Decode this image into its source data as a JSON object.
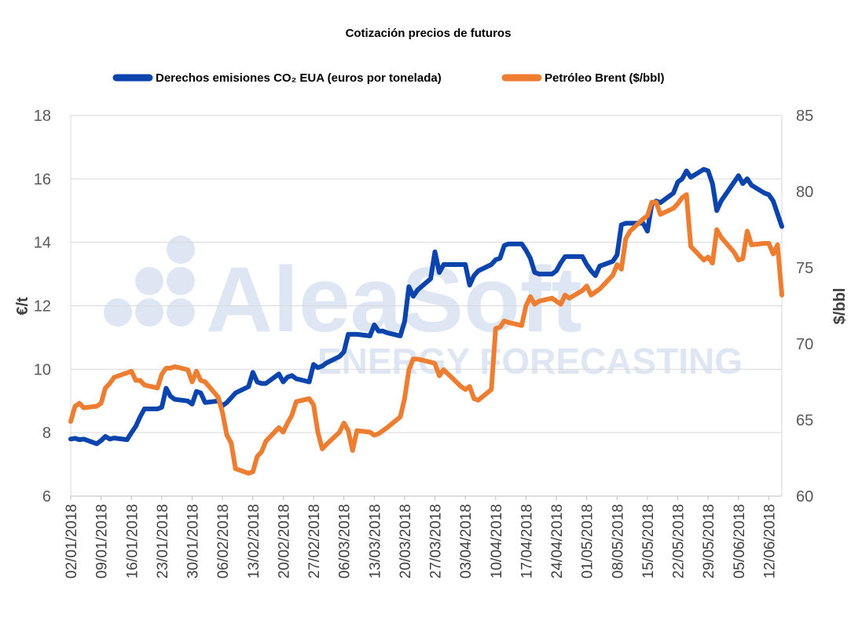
{
  "watermark": {
    "brand": "AleaSoft",
    "tagline": "ENERGY FORECASTING"
  },
  "colors": {
    "eua": "#0b44ad",
    "brent": "#ed7d31",
    "grid": "#d9d9d9",
    "watermark": "#dde6f2"
  },
  "chart_data": {
    "type": "line",
    "title": "Cotización precios de futuros",
    "legend_position": "top",
    "grid": true,
    "y_left": {
      "label": "€/t",
      "range": [
        6,
        18
      ],
      "ticks": [
        6,
        8,
        10,
        12,
        14,
        16,
        18
      ]
    },
    "y_right": {
      "label": "$/bbl",
      "range": [
        60,
        85
      ],
      "ticks": [
        60,
        65,
        70,
        75,
        80,
        85
      ]
    },
    "x_range": [
      "2018-01-02",
      "2018-06-15"
    ],
    "x_tick_labels": [
      "02/01/2018",
      "09/01/2018",
      "16/01/2018",
      "23/01/2018",
      "30/01/2018",
      "06/02/2018",
      "13/02/2018",
      "20/02/2018",
      "27/02/2018",
      "06/03/2018",
      "13/03/2018",
      "20/03/2018",
      "27/03/2018",
      "03/04/2018",
      "10/04/2018",
      "17/04/2018",
      "24/04/2018",
      "01/05/2018",
      "08/05/2018",
      "15/05/2018",
      "22/05/2018",
      "29/05/2018",
      "05/06/2018",
      "12/06/2018"
    ],
    "series": [
      {
        "name": "Derechos emisiones CO2 EUA (euros por tonelada)",
        "legend_label": "Derechos emisiones CO₂ EUA (euros por tonelada)",
        "axis": "left",
        "x": [
          "2018-01-02",
          "2018-01-03",
          "2018-01-04",
          "2018-01-05",
          "2018-01-08",
          "2018-01-09",
          "2018-01-10",
          "2018-01-11",
          "2018-01-12",
          "2018-01-15",
          "2018-01-16",
          "2018-01-17",
          "2018-01-18",
          "2018-01-19",
          "2018-01-22",
          "2018-01-23",
          "2018-01-24",
          "2018-01-25",
          "2018-01-26",
          "2018-01-29",
          "2018-01-30",
          "2018-01-31",
          "2018-02-01",
          "2018-02-02",
          "2018-02-05",
          "2018-02-06",
          "2018-02-07",
          "2018-02-08",
          "2018-02-09",
          "2018-02-12",
          "2018-02-13",
          "2018-02-14",
          "2018-02-15",
          "2018-02-16",
          "2018-02-19",
          "2018-02-20",
          "2018-02-21",
          "2018-02-22",
          "2018-02-23",
          "2018-02-26",
          "2018-02-27",
          "2018-02-28",
          "2018-03-01",
          "2018-03-02",
          "2018-03-05",
          "2018-03-06",
          "2018-03-07",
          "2018-03-08",
          "2018-03-09",
          "2018-03-12",
          "2018-03-13",
          "2018-03-14",
          "2018-03-15",
          "2018-03-16",
          "2018-03-19",
          "2018-03-20",
          "2018-03-21",
          "2018-03-22",
          "2018-03-23",
          "2018-03-26",
          "2018-03-27",
          "2018-03-28",
          "2018-03-29",
          "2018-04-02",
          "2018-04-03",
          "2018-04-04",
          "2018-04-05",
          "2018-04-06",
          "2018-04-09",
          "2018-04-10",
          "2018-04-11",
          "2018-04-12",
          "2018-04-13",
          "2018-04-16",
          "2018-04-17",
          "2018-04-18",
          "2018-04-19",
          "2018-04-20",
          "2018-04-23",
          "2018-04-24",
          "2018-04-25",
          "2018-04-26",
          "2018-04-27",
          "2018-04-30",
          "2018-05-01",
          "2018-05-02",
          "2018-05-03",
          "2018-05-04",
          "2018-05-07",
          "2018-05-08",
          "2018-05-09",
          "2018-05-10",
          "2018-05-11",
          "2018-05-14",
          "2018-05-15",
          "2018-05-16",
          "2018-05-17",
          "2018-05-18",
          "2018-05-21",
          "2018-05-22",
          "2018-05-23",
          "2018-05-24",
          "2018-05-25",
          "2018-05-28",
          "2018-05-29",
          "2018-05-30",
          "2018-05-31",
          "2018-06-01",
          "2018-06-04",
          "2018-06-05",
          "2018-06-06",
          "2018-06-07",
          "2018-06-08",
          "2018-06-11",
          "2018-06-12",
          "2018-06-13",
          "2018-06-14",
          "2018-06-15"
        ],
        "y": [
          7.8,
          7.82,
          7.78,
          7.8,
          7.65,
          7.75,
          7.88,
          7.8,
          7.83,
          7.78,
          8.0,
          8.2,
          8.5,
          8.75,
          8.75,
          8.8,
          9.4,
          9.15,
          9.05,
          9.0,
          8.9,
          9.3,
          9.25,
          8.95,
          9.0,
          8.85,
          8.95,
          9.1,
          9.25,
          9.45,
          9.9,
          9.6,
          9.55,
          9.55,
          9.85,
          9.6,
          9.75,
          9.8,
          9.7,
          9.6,
          10.15,
          10.05,
          10.1,
          10.2,
          10.4,
          10.55,
          11.1,
          11.1,
          11.1,
          11.05,
          11.4,
          11.2,
          11.2,
          11.15,
          11.05,
          11.5,
          12.6,
          12.3,
          12.5,
          12.85,
          13.7,
          13.05,
          13.3,
          13.3,
          13.3,
          12.65,
          12.95,
          13.1,
          13.3,
          13.45,
          13.5,
          13.9,
          13.95,
          13.95,
          13.75,
          13.5,
          13.05,
          13.0,
          13.0,
          13.1,
          13.35,
          13.55,
          13.55,
          13.55,
          13.3,
          13.1,
          12.95,
          13.25,
          13.4,
          13.6,
          14.55,
          14.6,
          14.6,
          14.6,
          14.35,
          15.2,
          15.3,
          15.25,
          15.55,
          15.9,
          16.0,
          16.25,
          16.05,
          16.3,
          16.25,
          15.85,
          15.0,
          15.3,
          15.9,
          16.1,
          15.85,
          16.0,
          15.8,
          15.55,
          15.5,
          15.3,
          14.9,
          14.5
        ]
      },
      {
        "name": "Petróleo Brent ($/bbl)",
        "legend_label": "Petróleo Brent ($/bbl)",
        "axis": "right",
        "x": [
          "2018-01-02",
          "2018-01-03",
          "2018-01-04",
          "2018-01-05",
          "2018-01-08",
          "2018-01-09",
          "2018-01-10",
          "2018-01-11",
          "2018-01-12",
          "2018-01-15",
          "2018-01-16",
          "2018-01-17",
          "2018-01-18",
          "2018-01-19",
          "2018-01-22",
          "2018-01-23",
          "2018-01-24",
          "2018-01-25",
          "2018-01-26",
          "2018-01-29",
          "2018-01-30",
          "2018-01-31",
          "2018-02-01",
          "2018-02-02",
          "2018-02-05",
          "2018-02-06",
          "2018-02-07",
          "2018-02-08",
          "2018-02-09",
          "2018-02-12",
          "2018-02-13",
          "2018-02-14",
          "2018-02-15",
          "2018-02-16",
          "2018-02-19",
          "2018-02-20",
          "2018-02-21",
          "2018-02-22",
          "2018-02-23",
          "2018-02-26",
          "2018-02-27",
          "2018-02-28",
          "2018-03-01",
          "2018-03-02",
          "2018-03-05",
          "2018-03-06",
          "2018-03-07",
          "2018-03-08",
          "2018-03-09",
          "2018-03-12",
          "2018-03-13",
          "2018-03-14",
          "2018-03-15",
          "2018-03-16",
          "2018-03-19",
          "2018-03-20",
          "2018-03-21",
          "2018-03-22",
          "2018-03-23",
          "2018-03-26",
          "2018-03-27",
          "2018-03-28",
          "2018-03-29",
          "2018-04-02",
          "2018-04-03",
          "2018-04-04",
          "2018-04-05",
          "2018-04-06",
          "2018-04-09",
          "2018-04-10",
          "2018-04-11",
          "2018-04-12",
          "2018-04-13",
          "2018-04-16",
          "2018-04-17",
          "2018-04-18",
          "2018-04-19",
          "2018-04-20",
          "2018-04-23",
          "2018-04-24",
          "2018-04-25",
          "2018-04-26",
          "2018-04-27",
          "2018-04-30",
          "2018-05-01",
          "2018-05-02",
          "2018-05-03",
          "2018-05-04",
          "2018-05-07",
          "2018-05-08",
          "2018-05-09",
          "2018-05-10",
          "2018-05-11",
          "2018-05-14",
          "2018-05-15",
          "2018-05-16",
          "2018-05-17",
          "2018-05-18",
          "2018-05-21",
          "2018-05-22",
          "2018-05-23",
          "2018-05-24",
          "2018-05-25",
          "2018-05-28",
          "2018-05-29",
          "2018-05-30",
          "2018-05-31",
          "2018-06-01",
          "2018-06-04",
          "2018-06-05",
          "2018-06-06",
          "2018-06-07",
          "2018-06-08",
          "2018-06-11",
          "2018-06-12",
          "2018-06-13",
          "2018-06-14",
          "2018-06-15"
        ],
        "y": [
          64.9,
          65.9,
          66.1,
          65.8,
          65.9,
          66.1,
          67.1,
          67.4,
          67.8,
          68.1,
          68.2,
          67.6,
          67.6,
          67.3,
          67.1,
          68.0,
          68.4,
          68.4,
          68.5,
          68.3,
          67.5,
          68.2,
          67.6,
          67.5,
          66.5,
          65.5,
          64.0,
          63.5,
          61.8,
          61.5,
          61.6,
          62.6,
          62.9,
          63.6,
          64.5,
          64.2,
          64.8,
          65.3,
          66.2,
          66.4,
          66.0,
          64.2,
          63.1,
          63.4,
          64.2,
          64.8,
          64.3,
          63.0,
          64.3,
          64.2,
          64.0,
          64.1,
          64.3,
          64.5,
          65.2,
          66.4,
          68.3,
          69.0,
          69.0,
          68.8,
          68.7,
          67.9,
          68.3,
          67.2,
          67.0,
          67.2,
          66.4,
          66.3,
          67.0,
          71.0,
          71.1,
          71.5,
          71.4,
          71.2,
          72.5,
          73.1,
          72.6,
          72.8,
          73.0,
          72.8,
          72.6,
          73.2,
          73.0,
          73.5,
          73.8,
          73.2,
          73.4,
          73.6,
          74.5,
          75.2,
          74.9,
          76.9,
          77.4,
          78.2,
          78.4,
          79.3,
          79.3,
          78.5,
          78.9,
          79.2,
          79.6,
          79.8,
          76.4,
          75.5,
          75.7,
          75.3,
          77.5,
          77.0,
          76.0,
          75.5,
          75.6,
          77.4,
          76.5,
          76.6,
          76.6,
          75.9,
          76.5,
          73.2
        ]
      }
    ]
  }
}
